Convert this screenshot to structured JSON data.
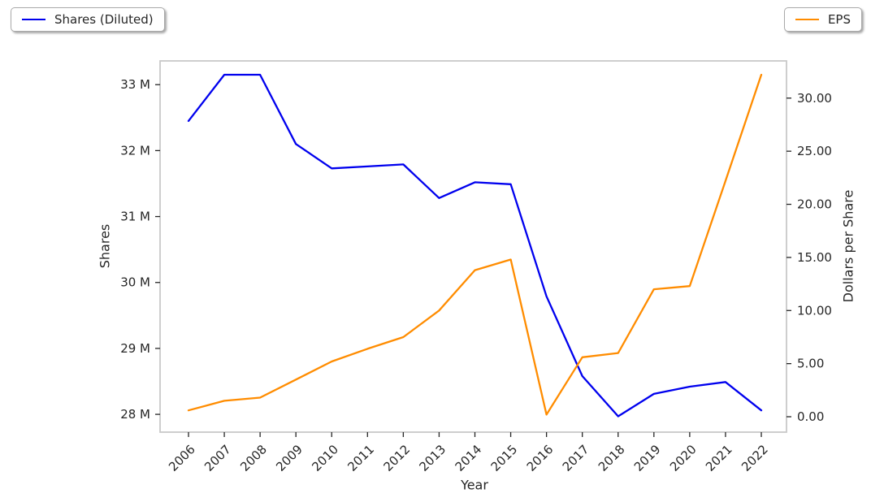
{
  "chart_data": {
    "type": "line",
    "title": "",
    "xlabel": "Year",
    "x": [
      2006,
      2007,
      2008,
      2009,
      2010,
      2011,
      2012,
      2013,
      2014,
      2015,
      2016,
      2017,
      2018,
      2019,
      2020,
      2021,
      2022
    ],
    "x_labels": [
      "2006",
      "2007",
      "2008",
      "2009",
      "2010",
      "2011",
      "2012",
      "2013",
      "2014",
      "2015",
      "2016",
      "2017",
      "2018",
      "2019",
      "2020",
      "2021",
      "2022"
    ],
    "series": [
      {
        "name": "Shares (Diluted)",
        "yaxis": "left",
        "color": "#0000ee",
        "unit": "millions of shares",
        "values": [
          32.45,
          33.15,
          33.15,
          32.1,
          31.73,
          31.76,
          31.79,
          31.28,
          31.52,
          31.49,
          29.79,
          28.58,
          27.97,
          28.31,
          28.42,
          28.49,
          28.06
        ]
      },
      {
        "name": "EPS",
        "yaxis": "right",
        "color": "#ff8c00",
        "unit": "dollars per share",
        "values": [
          0.6,
          1.5,
          1.8,
          3.5,
          5.2,
          6.4,
          7.5,
          10.0,
          13.8,
          14.8,
          0.2,
          5.6,
          6.0,
          12.0,
          12.3,
          22.2,
          32.2
        ]
      }
    ],
    "left_axis": {
      "label": "Shares",
      "tick_labels": [
        "28 M",
        "29 M",
        "30 M",
        "31 M",
        "32 M",
        "33 M"
      ],
      "tick_values": [
        28,
        29,
        30,
        31,
        32,
        33
      ],
      "range": [
        27.73,
        33.36
      ]
    },
    "right_axis": {
      "label": "Dollars per Share",
      "tick_labels": [
        "0.00",
        "5.00",
        "10.00",
        "15.00",
        "20.00",
        "25.00",
        "30.00"
      ],
      "tick_values": [
        0,
        5,
        10,
        15,
        20,
        25,
        30
      ],
      "range": [
        -1.45,
        33.5
      ]
    },
    "legend": [
      {
        "label": "Shares (Diluted)",
        "position": "top-left",
        "color": "#0000ee"
      },
      {
        "label": "EPS",
        "position": "top-right",
        "color": "#ff8c00"
      }
    ],
    "grid": false
  }
}
